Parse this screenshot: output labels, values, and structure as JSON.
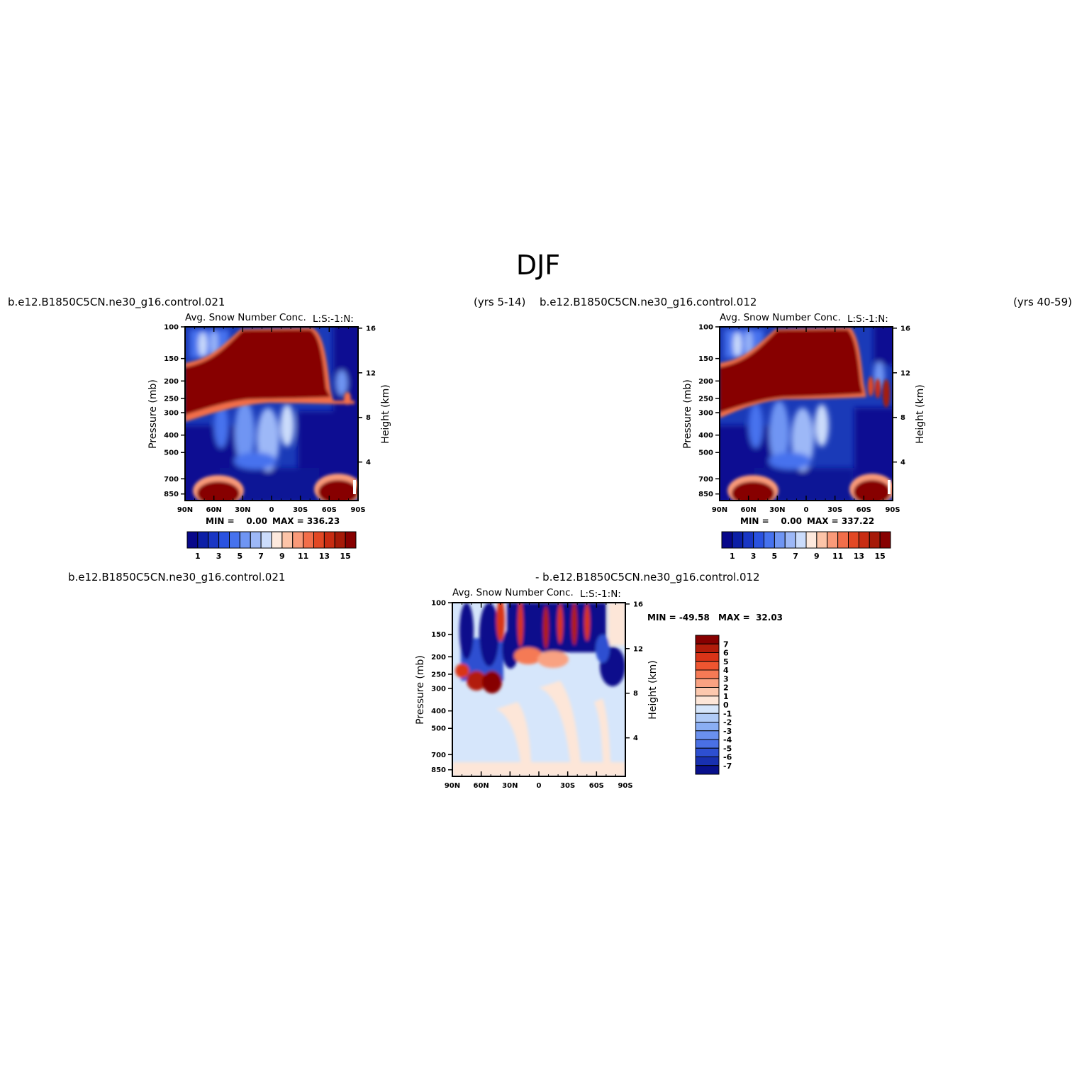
{
  "figure": {
    "title": "DJF"
  },
  "panels": [
    {
      "case_left": "b.e12.B1850C5CN.ne30_g16.control.021",
      "case_right": "(yrs 5-14)",
      "title_left": "Avg. Snow Number Conc.",
      "title_right": "L:S:-1:N:",
      "min_label": "MIN =    0.00",
      "max_label": "MAX = 336.23"
    },
    {
      "case_left": "b.e12.B1850C5CN.ne30_g16.control.012",
      "case_right": "(yrs 40-59)",
      "title_left": "Avg. Snow Number Conc.",
      "title_right": "L:S:-1:N:",
      "min_label": "MIN =    0.00",
      "max_label": "MAX = 337.22"
    },
    {
      "case_left": "b.e12.B1850C5CN.ne30_g16.control.021",
      "case_right": "- b.e12.B1850C5CN.ne30_g16.control.012",
      "title_left": "Avg. Snow Number Conc.",
      "title_right": "L:S:-1:N:",
      "min_label": "MIN = -49.58",
      "max_label": "MAX =  32.03"
    }
  ],
  "chart_data": [
    {
      "type": "heatmap",
      "title": "Avg. Snow Number Conc.",
      "xlabel": "",
      "ylabel": "Pressure (mb)",
      "y2label": "Height (km)",
      "x_ticks": [
        "90N",
        "60N",
        "30N",
        "0",
        "30S",
        "60S",
        "90S"
      ],
      "y_ticks": [
        100,
        150,
        200,
        250,
        300,
        400,
        500,
        700,
        850
      ],
      "y2_ticks": [
        16,
        12,
        8,
        4
      ],
      "y_scale": "log",
      "ylim": [
        100,
        925
      ],
      "colorbar": {
        "labels": [
          "1",
          "3",
          "5",
          "7",
          "9",
          "11",
          "13",
          "15"
        ],
        "colors": [
          "#08088a",
          "#0c1fa6",
          "#1936c4",
          "#2a52e0",
          "#4672ee",
          "#6f95f3",
          "#9db8f7",
          "#cbdcfb",
          "#fde9dd",
          "#fcc4a8",
          "#f99a79",
          "#f26e4a",
          "#e24824",
          "#c82c12",
          "#a61a08",
          "#870000"
        ]
      },
      "min": 0.0,
      "max": 336.23
    },
    {
      "type": "heatmap",
      "title": "Avg. Snow Number Conc.",
      "xlabel": "",
      "ylabel": "Pressure (mb)",
      "y2label": "Height (km)",
      "x_ticks": [
        "90N",
        "60N",
        "30N",
        "0",
        "30S",
        "60S",
        "90S"
      ],
      "y_ticks": [
        100,
        150,
        200,
        250,
        300,
        400,
        500,
        700,
        850
      ],
      "y2_ticks": [
        16,
        12,
        8,
        4
      ],
      "y_scale": "log",
      "ylim": [
        100,
        925
      ],
      "colorbar": {
        "labels": [
          "1",
          "3",
          "5",
          "7",
          "9",
          "11",
          "13",
          "15"
        ],
        "colors": [
          "#08088a",
          "#0c1fa6",
          "#1936c4",
          "#2a52e0",
          "#4672ee",
          "#6f95f3",
          "#9db8f7",
          "#cbdcfb",
          "#fde9dd",
          "#fcc4a8",
          "#f99a79",
          "#f26e4a",
          "#e24824",
          "#c82c12",
          "#a61a08",
          "#870000"
        ]
      },
      "min": 0.0,
      "max": 337.22
    },
    {
      "type": "heatmap",
      "title": "Avg. Snow Number Conc.",
      "xlabel": "",
      "ylabel": "Pressure (mb)",
      "y2label": "Height (km)",
      "x_ticks": [
        "90N",
        "60N",
        "30N",
        "0",
        "30S",
        "60S",
        "90S"
      ],
      "y_ticks": [
        100,
        150,
        200,
        250,
        300,
        400,
        500,
        700,
        850
      ],
      "y2_ticks": [
        16,
        12,
        8,
        4
      ],
      "y_scale": "log",
      "ylim": [
        100,
        925
      ],
      "colorbar": {
        "labels": [
          "7",
          "6",
          "5",
          "4",
          "3",
          "2",
          "1",
          "0",
          "-1",
          "-2",
          "-3",
          "-4",
          "-5",
          "-6",
          "-7"
        ],
        "colors": [
          "#870000",
          "#b21c0a",
          "#d93418",
          "#ee5530",
          "#f57a55",
          "#f9a282",
          "#fcc8ae",
          "#fde6d8",
          "#d6e6fb",
          "#b0cbf7",
          "#8aaef3",
          "#6a90ee",
          "#4a70e4",
          "#2d4fd1",
          "#1830b0",
          "#08108c"
        ]
      },
      "min": -49.58,
      "max": 32.03
    }
  ]
}
